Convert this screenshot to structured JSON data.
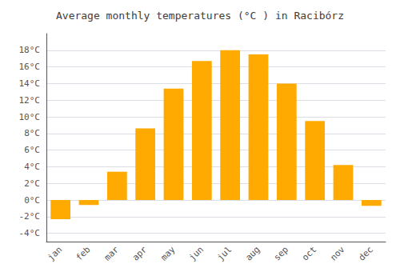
{
  "chart_data": {
    "type": "bar",
    "title": "Average monthly temperatures (°C ) in Racibórz",
    "categories": [
      "jan",
      "feb",
      "mar",
      "apr",
      "may",
      "jun",
      "jul",
      "aug",
      "sep",
      "oct",
      "nov",
      "dec"
    ],
    "values": [
      -2.3,
      -0.6,
      3.4,
      8.6,
      13.4,
      16.7,
      18.0,
      17.5,
      14.0,
      9.5,
      4.2,
      -0.7
    ],
    "color": "#FFAA00",
    "ylim": [
      -5,
      20
    ],
    "yticks": [
      {
        "value": -4,
        "label": "-4°C"
      },
      {
        "value": -2,
        "label": "-2°C"
      },
      {
        "value": 0,
        "label": "0°C"
      },
      {
        "value": 2,
        "label": "2°C"
      },
      {
        "value": 4,
        "label": "4°C"
      },
      {
        "value": 6,
        "label": "6°C"
      },
      {
        "value": 8,
        "label": "8°C"
      },
      {
        "value": 10,
        "label": "10°C"
      },
      {
        "value": 12,
        "label": "12°C"
      },
      {
        "value": 14,
        "label": "14°C"
      },
      {
        "value": 16,
        "label": "16°C"
      },
      {
        "value": 18,
        "label": "18°C"
      }
    ],
    "grid": true
  }
}
